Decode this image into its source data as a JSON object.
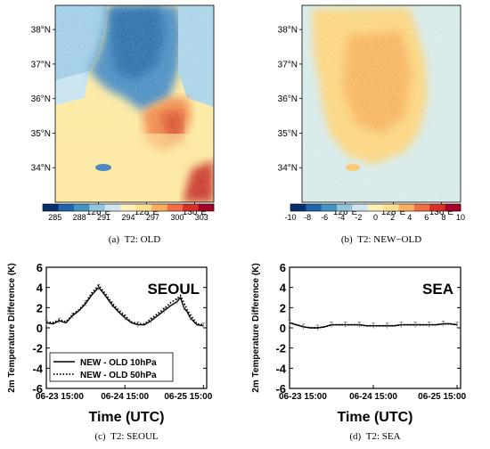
{
  "chart_data": [
    {
      "type": "heatmap",
      "caption": {
        "tag": "(a)",
        "text": "T2: OLD"
      },
      "lat_ticks": [
        "38°N",
        "37°N",
        "36°N",
        "35°N",
        "34°N"
      ],
      "lat_values": [
        38,
        37,
        36,
        35,
        34
      ],
      "lon_ticks": [
        "126°E",
        "128°E",
        "130°E"
      ],
      "lon_values": [
        126,
        128,
        130
      ],
      "xlim": [
        124.2,
        130.8
      ],
      "ylim": [
        33.0,
        38.7
      ],
      "colorbar": {
        "labels": [
          "285",
          "288",
          "291",
          "294",
          "297",
          "300",
          "303"
        ],
        "values": [
          285,
          288,
          291,
          294,
          297,
          300,
          303
        ],
        "range": [
          283.5,
          304.5
        ],
        "colors": [
          "#08306b",
          "#2166ac",
          "#4393c3",
          "#92c5de",
          "#d1e5f0",
          "#fdf1b8",
          "#fee090",
          "#fdae61",
          "#f46d43",
          "#d73027",
          "#a50026"
        ]
      }
    },
    {
      "type": "heatmap",
      "caption": {
        "tag": "(b)",
        "text": "T2: NEW−OLD"
      },
      "lat_ticks": [
        "38°N",
        "37°N",
        "36°N",
        "35°N",
        "34°N"
      ],
      "lat_values": [
        38,
        37,
        36,
        35,
        34
      ],
      "lon_ticks": [
        "126°E",
        "128°E",
        "130°E"
      ],
      "lon_values": [
        126,
        128,
        130
      ],
      "xlim": [
        124.2,
        130.8
      ],
      "ylim": [
        33.0,
        38.7
      ],
      "colorbar": {
        "labels": [
          "-10",
          "-8",
          "-6",
          "-4",
          "-2",
          "0",
          "2",
          "4",
          "6",
          "8",
          "10"
        ],
        "values": [
          -10,
          -8,
          -6,
          -4,
          -2,
          0,
          2,
          4,
          6,
          8,
          10
        ],
        "range": [
          -10,
          10
        ],
        "colors": [
          "#08306b",
          "#2166ac",
          "#4393c3",
          "#92c5de",
          "#d1e5f0",
          "#fdf1b8",
          "#fee090",
          "#fdae61",
          "#f46d43",
          "#d73027",
          "#a50026"
        ]
      }
    },
    {
      "type": "line",
      "caption": {
        "tag": "(c)",
        "text": "T2: SEOUL"
      },
      "station": "SEOUL",
      "ylabel": "2m Temperature Difference (K)",
      "xlabel": "Time (UTC)",
      "ylim": [
        -6,
        6
      ],
      "yticks": [
        -6,
        -4,
        -2,
        0,
        2,
        4,
        6
      ],
      "xlim": [
        0,
        49
      ],
      "xticks": [
        {
          "hour": 0,
          "label": "06-23 15:00"
        },
        {
          "hour": 24,
          "label": "06-24 15:00"
        },
        {
          "hour": 48,
          "label": "06-25 15:00"
        }
      ],
      "legend": {
        "position": "bottom-left"
      },
      "series": [
        {
          "name": "NEW - OLD 10hPa",
          "style": "solid",
          "x": [
            0,
            2,
            4,
            6,
            8,
            10,
            12,
            14,
            16,
            18,
            20,
            22,
            24,
            26,
            28,
            30,
            32,
            34,
            36,
            38,
            40,
            41,
            42,
            43,
            44,
            46,
            48
          ],
          "y": [
            0.5,
            0.4,
            0.7,
            0.5,
            1.2,
            1.7,
            2.4,
            3.3,
            4.0,
            3.2,
            2.3,
            1.6,
            1.0,
            0.5,
            0.3,
            0.3,
            0.7,
            1.2,
            1.7,
            2.2,
            2.6,
            3.0,
            2.0,
            1.6,
            1.0,
            0.3,
            0.2
          ]
        },
        {
          "name": "NEW - OLD 50hPa",
          "style": "dotted",
          "x": [
            0,
            2,
            4,
            6,
            8,
            10,
            12,
            14,
            16,
            18,
            20,
            22,
            24,
            26,
            28,
            30,
            32,
            34,
            36,
            38,
            40,
            41,
            42,
            43,
            44,
            46,
            48
          ],
          "y": [
            0.6,
            0.5,
            0.8,
            0.6,
            1.3,
            1.8,
            2.5,
            3.5,
            4.2,
            3.4,
            2.5,
            1.8,
            1.2,
            0.6,
            0.4,
            0.4,
            0.9,
            1.4,
            1.9,
            2.5,
            2.9,
            3.2,
            2.5,
            1.8,
            1.3,
            0.4,
            0.3
          ]
        }
      ]
    },
    {
      "type": "line",
      "caption": {
        "tag": "(d)",
        "text": "T2: SEA"
      },
      "station": "SEA",
      "ylabel": "2m Temperature Difference (K)",
      "xlabel": "Time (UTC)",
      "ylim": [
        -6,
        6
      ],
      "yticks": [
        -6,
        -4,
        -2,
        0,
        2,
        4,
        6
      ],
      "xlim": [
        0,
        49
      ],
      "xticks": [
        {
          "hour": 0,
          "label": "06-23 15:00"
        },
        {
          "hour": 24,
          "label": "06-24 15:00"
        },
        {
          "hour": 48,
          "label": "06-25 15:00"
        }
      ],
      "series": [
        {
          "style": "solid",
          "x": [
            0,
            2,
            4,
            6,
            8,
            10,
            12,
            14,
            16,
            18,
            20,
            22,
            24,
            26,
            28,
            30,
            32,
            34,
            36,
            38,
            40,
            42,
            44,
            46,
            48
          ],
          "y": [
            0.5,
            0.3,
            0.1,
            0.0,
            0.0,
            0.1,
            0.3,
            0.3,
            0.3,
            0.3,
            0.3,
            0.2,
            0.2,
            0.2,
            0.2,
            0.2,
            0.3,
            0.3,
            0.3,
            0.3,
            0.3,
            0.3,
            0.4,
            0.4,
            0.3
          ]
        },
        {
          "style": "dotted",
          "x": [
            0,
            2,
            4,
            6,
            8,
            10,
            12,
            14,
            16,
            18,
            20,
            22,
            24,
            26,
            28,
            30,
            32,
            34,
            36,
            38,
            40,
            42,
            44,
            46,
            48
          ],
          "y": [
            0.5,
            0.3,
            0.1,
            0.0,
            0.0,
            0.1,
            0.3,
            0.3,
            0.3,
            0.3,
            0.3,
            0.2,
            0.2,
            0.2,
            0.2,
            0.2,
            0.3,
            0.3,
            0.3,
            0.3,
            0.3,
            0.3,
            0.4,
            0.4,
            0.3
          ]
        }
      ]
    }
  ]
}
